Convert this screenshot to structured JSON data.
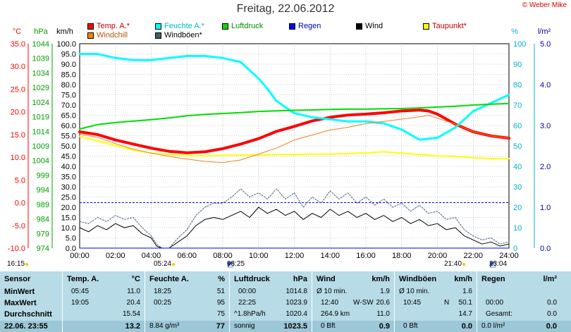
{
  "copyright": "© Weber Mike",
  "chart_data": {
    "type": "line",
    "title": "Freitag, 22.06.2012",
    "x_ticks": [
      "00:00",
      "02:00",
      "04:00",
      "06:00",
      "08:00",
      "10:00",
      "12:00",
      "14:00",
      "16:00",
      "18:00",
      "20:00",
      "22:00",
      "24:00"
    ],
    "xlim_hours": [
      0,
      24
    ],
    "axes": {
      "temp_c": {
        "label": "°C",
        "color": "#ff0000",
        "ticks": [
          "35.0",
          "30.0",
          "25.0",
          "20.0",
          "15.0",
          "10.0",
          "5.0",
          "0.0",
          "-5.0",
          "-10.0"
        ],
        "range": [
          -10,
          35
        ]
      },
      "pressure_hpa": {
        "label": "hPa",
        "color": "#00a000",
        "ticks": [
          "1044",
          "1039",
          "1034",
          "1029",
          "1024",
          "1019",
          "1014",
          "1009",
          "1004",
          "999",
          "994",
          "989",
          "984",
          "979",
          "974"
        ],
        "range": [
          974,
          1044
        ]
      },
      "speed_kmh": {
        "label": "km/h",
        "color": "#000000",
        "ticks": [
          "100.0",
          "95.0",
          "90.0",
          "85.0",
          "80.0",
          "75.0",
          "70.0",
          "65.0",
          "60.0",
          "55.0",
          "50.0",
          "45.0",
          "40.0",
          "35.0",
          "30.0",
          "25.0",
          "20.0",
          "15.0",
          "10.0",
          "5.0",
          "0.0"
        ],
        "range": [
          0,
          100
        ]
      },
      "humidity_pct": {
        "label": "%",
        "color": "#00b0d0",
        "ticks": [
          "100",
          "90",
          "80",
          "70",
          "60",
          "50",
          "40",
          "30",
          "20",
          "10",
          "0"
        ],
        "range": [
          0,
          100
        ]
      },
      "rain_lm2": {
        "label": "l/m²",
        "color": "#0000a0",
        "ticks": [
          "5.0",
          "4.0",
          "3.0",
          "2.0",
          "1.0",
          "0.0"
        ],
        "range": [
          0,
          5
        ]
      }
    },
    "legend": [
      {
        "name": "Temp. A.*",
        "color": "#ff0000"
      },
      {
        "name": "Feuchte A.*",
        "color": "#00ffff"
      },
      {
        "name": "Luftdruck",
        "color": "#00dd00"
      },
      {
        "name": "Regen",
        "color": "#0000ff"
      },
      {
        "name": "Wind",
        "color": "#000000"
      },
      {
        "name": "Taupunkt*",
        "color": "#ffff00"
      },
      {
        "name": "Windchill",
        "color": "#ff8000"
      },
      {
        "name": "Windböen*",
        "color": "#406060"
      }
    ],
    "series": [
      {
        "name": "Temp. A.*",
        "axis": "temp_c",
        "color": "#ff0000",
        "width": 4,
        "x": [
          0,
          1,
          2,
          3,
          4,
          5,
          6,
          7,
          8,
          9,
          10,
          11,
          12,
          13,
          14,
          15,
          16,
          17,
          18,
          19,
          19.5,
          20,
          21,
          22,
          23,
          24
        ],
        "y": [
          15.6,
          15.0,
          13.8,
          12.9,
          12.0,
          11.3,
          11.0,
          11.2,
          11.9,
          12.9,
          14.1,
          15.7,
          16.8,
          18.0,
          18.8,
          19.3,
          19.5,
          19.8,
          20.2,
          20.4,
          20.2,
          19.5,
          17.3,
          15.6,
          14.7,
          14.2
        ]
      },
      {
        "name": "Feuchte A.*",
        "axis": "humidity_pct",
        "color": "#00ffff",
        "width": 3,
        "x": [
          0,
          1,
          2,
          3,
          4,
          5,
          6,
          7,
          8,
          9,
          10,
          10.5,
          11,
          12,
          13,
          14,
          15,
          16,
          17,
          18,
          19,
          20,
          21,
          22,
          23,
          24
        ],
        "y": [
          95,
          95,
          93,
          92,
          92,
          93,
          94,
          94,
          93,
          91,
          83,
          78,
          72,
          66,
          64,
          63,
          62,
          62,
          61,
          58,
          53,
          54,
          59,
          67,
          71,
          75
        ]
      },
      {
        "name": "Luftdruck",
        "axis": "pressure_hpa",
        "color": "#00dd00",
        "width": 2,
        "x": [
          0,
          1,
          2,
          3,
          4,
          5,
          6,
          7,
          8,
          9,
          10,
          11,
          12,
          13,
          14,
          15,
          16,
          17,
          18,
          19,
          20,
          21,
          22,
          23,
          24
        ],
        "y": [
          1014.8,
          1016.3,
          1017.0,
          1017.5,
          1018.0,
          1018.6,
          1019.3,
          1019.8,
          1020.1,
          1020.4,
          1020.8,
          1021.0,
          1021.2,
          1021.3,
          1021.5,
          1021.6,
          1021.6,
          1021.7,
          1021.8,
          1022.0,
          1022.3,
          1022.6,
          1023.0,
          1023.3,
          1023.5
        ]
      },
      {
        "name": "Taupunkt*",
        "axis": "temp_c",
        "color": "#ffff00",
        "width": 2,
        "x": [
          0,
          1,
          2,
          3,
          4,
          5,
          6,
          7,
          8,
          9,
          10,
          11,
          12,
          13,
          14,
          15,
          16,
          17,
          18,
          19,
          20,
          21,
          22,
          23,
          24
        ],
        "y": [
          14.6,
          13.6,
          12.6,
          11.6,
          10.9,
          10.6,
          10.4,
          10.3,
          10.4,
          10.5,
          10.5,
          10.6,
          10.6,
          10.7,
          10.7,
          10.8,
          11.0,
          11.2,
          10.9,
          10.6,
          10.3,
          10.2,
          9.9,
          9.7,
          9.7
        ]
      },
      {
        "name": "Windchill",
        "axis": "temp_c",
        "color": "#f08020",
        "width": 1,
        "x": [
          0,
          1,
          2,
          3,
          4,
          5,
          6,
          7,
          8,
          9,
          10,
          11,
          12,
          13,
          14,
          15,
          16,
          17,
          18,
          19,
          19.5,
          20,
          21,
          22,
          23,
          24
        ],
        "y": [
          15.1,
          14.4,
          13.0,
          11.8,
          10.9,
          10.2,
          9.6,
          9.1,
          8.8,
          9.4,
          10.7,
          12.0,
          13.8,
          14.9,
          16.0,
          16.6,
          17.4,
          17.9,
          18.4,
          18.9,
          19.2,
          18.6,
          17.3,
          15.6,
          14.7,
          14.2
        ]
      },
      {
        "name": "Wind",
        "axis": "speed_kmh",
        "color": "#000000",
        "width": 1,
        "x": [
          0,
          0.5,
          1,
          1.5,
          2,
          2.5,
          3,
          3.5,
          4,
          4.3,
          4.6,
          5,
          5.5,
          6,
          6.5,
          7,
          7.5,
          8,
          8.5,
          9,
          9.5,
          10,
          10.5,
          11,
          11.5,
          12,
          12.5,
          13,
          13.5,
          14,
          14.5,
          15,
          15.5,
          16,
          16.5,
          17,
          17.5,
          18,
          18.5,
          19,
          19.5,
          20,
          20.5,
          21,
          21.5,
          22,
          22.5,
          23,
          23.5,
          24
        ],
        "y": [
          10,
          8,
          11,
          9,
          12,
          10,
          11,
          7,
          5,
          1,
          0,
          0,
          3,
          6,
          11,
          14,
          15,
          14,
          16,
          18,
          15,
          20,
          17,
          19,
          16,
          18,
          14,
          17,
          15,
          19,
          16,
          18,
          15,
          17,
          14,
          16,
          13,
          15,
          12,
          14,
          11,
          12,
          9,
          10,
          6,
          4,
          2,
          3,
          1,
          2
        ]
      },
      {
        "name": "Windböen*",
        "axis": "speed_kmh",
        "color": "#406080",
        "width": 1,
        "dash": "2,2",
        "x": [
          0,
          0.5,
          1,
          1.5,
          2,
          2.5,
          3,
          3.5,
          4,
          4.3,
          4.6,
          5,
          5.5,
          6,
          6.5,
          7,
          7.5,
          8,
          8.5,
          9,
          9.5,
          10,
          10.5,
          11,
          11.5,
          12,
          12.5,
          13,
          13.5,
          14,
          14.5,
          15,
          15.5,
          16,
          16.5,
          17,
          17.5,
          18,
          18.5,
          19,
          19.5,
          20,
          20.5,
          21,
          21.5,
          22,
          22.5,
          23,
          23.5,
          24
        ],
        "y": [
          13,
          12,
          15,
          13,
          16,
          14,
          15,
          10,
          6,
          2,
          0,
          0,
          5,
          9,
          16,
          20,
          22,
          22,
          25,
          29,
          25,
          27,
          24,
          29,
          24,
          27,
          20,
          25,
          22,
          28,
          24,
          27,
          22,
          25,
          21,
          24,
          20,
          22,
          18,
          21,
          17,
          18,
          14,
          15,
          9,
          6,
          4,
          5,
          2,
          3
        ]
      },
      {
        "name": "Regen",
        "axis": "rain_lm2",
        "color": "#0000ff",
        "width": 1,
        "x": [
          0,
          24
        ],
        "y": [
          0,
          0
        ]
      }
    ],
    "reference_lines": [
      {
        "axis": "temp_c",
        "value": 0,
        "color": "#0000cc",
        "style": "dashed"
      }
    ]
  },
  "sun": {
    "left": "16:15",
    "sunrise": "05:24",
    "moonrise": "08:25",
    "sunset": "21:40",
    "moonset": "23:04"
  },
  "table": {
    "sensor": {
      "header": "Sensor",
      "rows": [
        "MinWert",
        "MaxWert",
        "Durchschnitt",
        "22.06. 23:55"
      ]
    },
    "temp": {
      "header": "Temp. A.",
      "unit": "°C",
      "rows": [
        [
          "05:45",
          "11.0"
        ],
        [
          "19:05",
          "20.4"
        ],
        [
          "",
          "15.54"
        ],
        [
          "",
          "13.2"
        ]
      ]
    },
    "feuchte": {
      "header": "Feuchte A.",
      "unit": "%",
      "rows": [
        [
          "18:25",
          "51"
        ],
        [
          "00:25",
          "95"
        ],
        [
          "",
          "75"
        ],
        [
          "8.84 g/m³",
          "77"
        ]
      ]
    },
    "luftdruck": {
      "header": "Luftdruck",
      "unit": "hPa",
      "rows": [
        [
          "00:00",
          "1014.8"
        ],
        [
          "22:25",
          "1023.9"
        ],
        [
          "^1.8hPa/h",
          "1020.4"
        ],
        [
          "sonnig",
          "1023.5"
        ]
      ]
    },
    "wind": {
      "header": "Wind",
      "unit": "km/h",
      "rows": [
        [
          "Ø 10 min.",
          "",
          "1.9"
        ],
        [
          "12:40",
          "W-SW",
          "20.6"
        ],
        [
          "264.9 km",
          "",
          "11.0"
        ],
        [
          "0 Bft",
          "",
          "0.9"
        ]
      ]
    },
    "boeen": {
      "header": "Windböen",
      "unit": "km/h",
      "rows": [
        [
          "Ø 10 min.",
          "",
          "1.6"
        ],
        [
          "10:45",
          "N",
          "50.1"
        ],
        [
          "",
          "",
          "14.7"
        ],
        [
          "0 Bft",
          "",
          "0.0"
        ]
      ]
    },
    "regen": {
      "header": "Regen",
      "unit": "l/m²",
      "rows": [
        [
          "",
          "",
          ""
        ],
        [
          "00:00",
          "",
          "0.0"
        ],
        [
          "Gesamt:",
          "",
          "0.0"
        ],
        [
          "0.0 l/m²",
          "",
          "0.0"
        ]
      ]
    }
  }
}
